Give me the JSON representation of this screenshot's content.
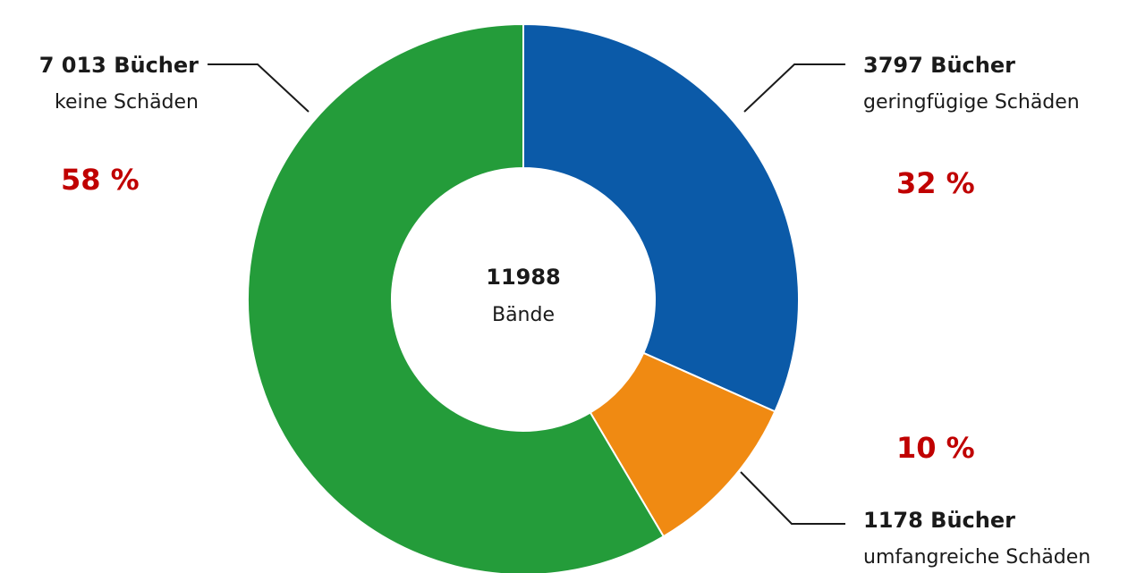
{
  "chart_data": {
    "type": "pie",
    "variant": "donut",
    "center": {
      "value": "11988",
      "label": "Bände"
    },
    "slices": [
      {
        "count_label": "3797 Bücher",
        "description": "geringfügige Schäden",
        "value": 3797,
        "percent_label": "32 %",
        "color": "#0b5aa8"
      },
      {
        "count_label": "1178 Bücher",
        "description": "umfangreiche Schäden",
        "value": 1178,
        "percent_label": "10 %",
        "color": "#f08a12"
      },
      {
        "count_label": "7 013 Bücher",
        "description": "keine Schäden",
        "value": 7013,
        "percent_label": "58 %",
        "color": "#249c3a"
      }
    ],
    "percent_color": "#c00000"
  }
}
